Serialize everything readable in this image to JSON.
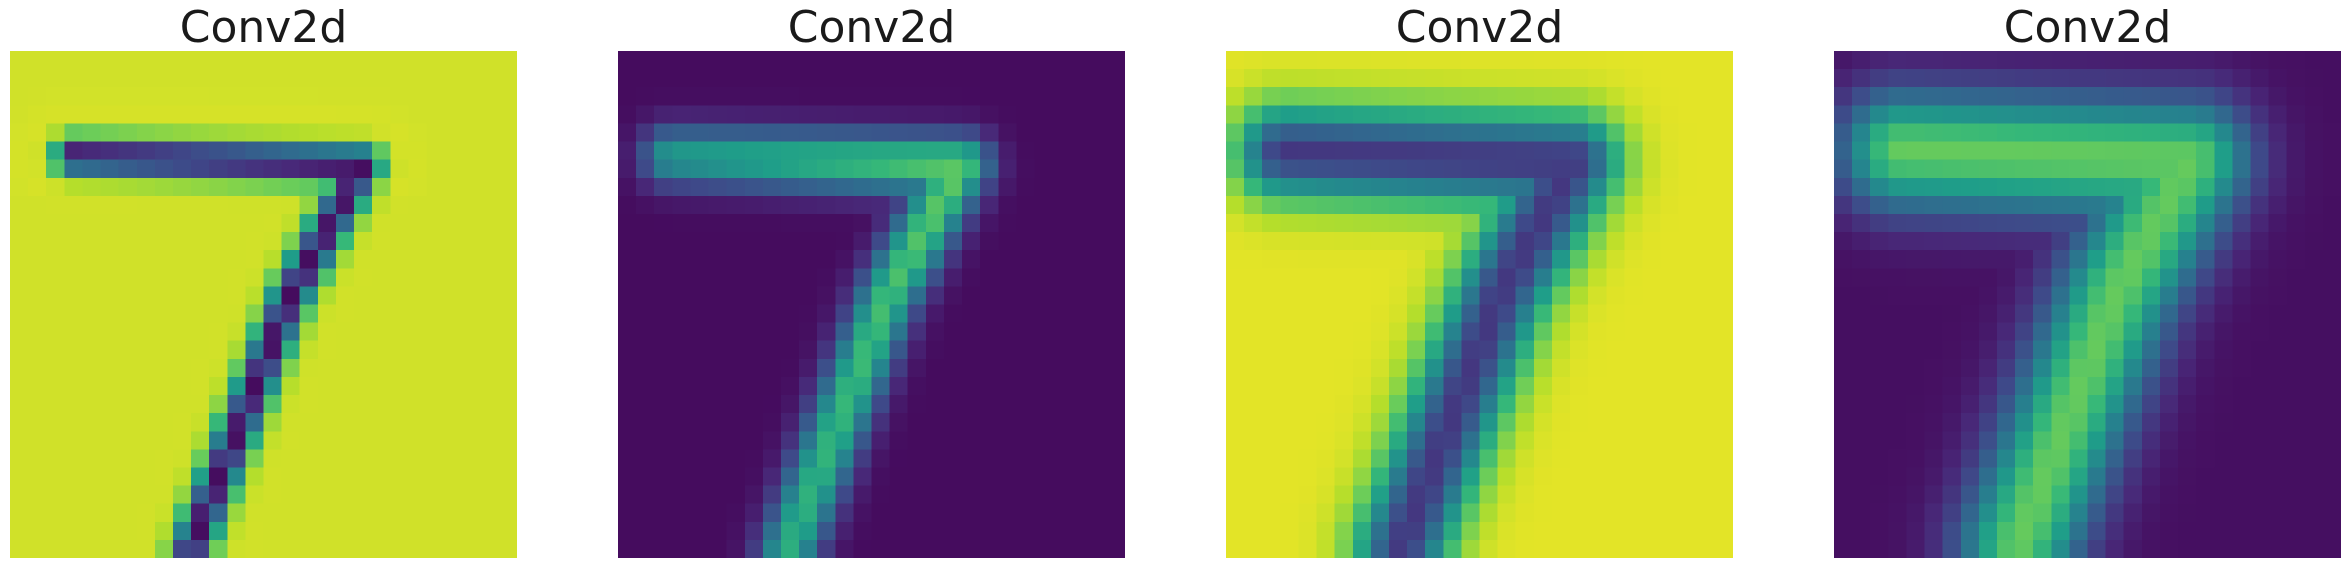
{
  "panels": [
    {
      "title": "Conv2d",
      "pattern": "inv-thin"
    },
    {
      "title": "Conv2d",
      "pattern": "pos-thick"
    },
    {
      "title": "Conv2d",
      "pattern": "inv-wide"
    },
    {
      "title": "Conv2d",
      "pattern": "pos-wide"
    }
  ],
  "colormap": "viridis"
}
